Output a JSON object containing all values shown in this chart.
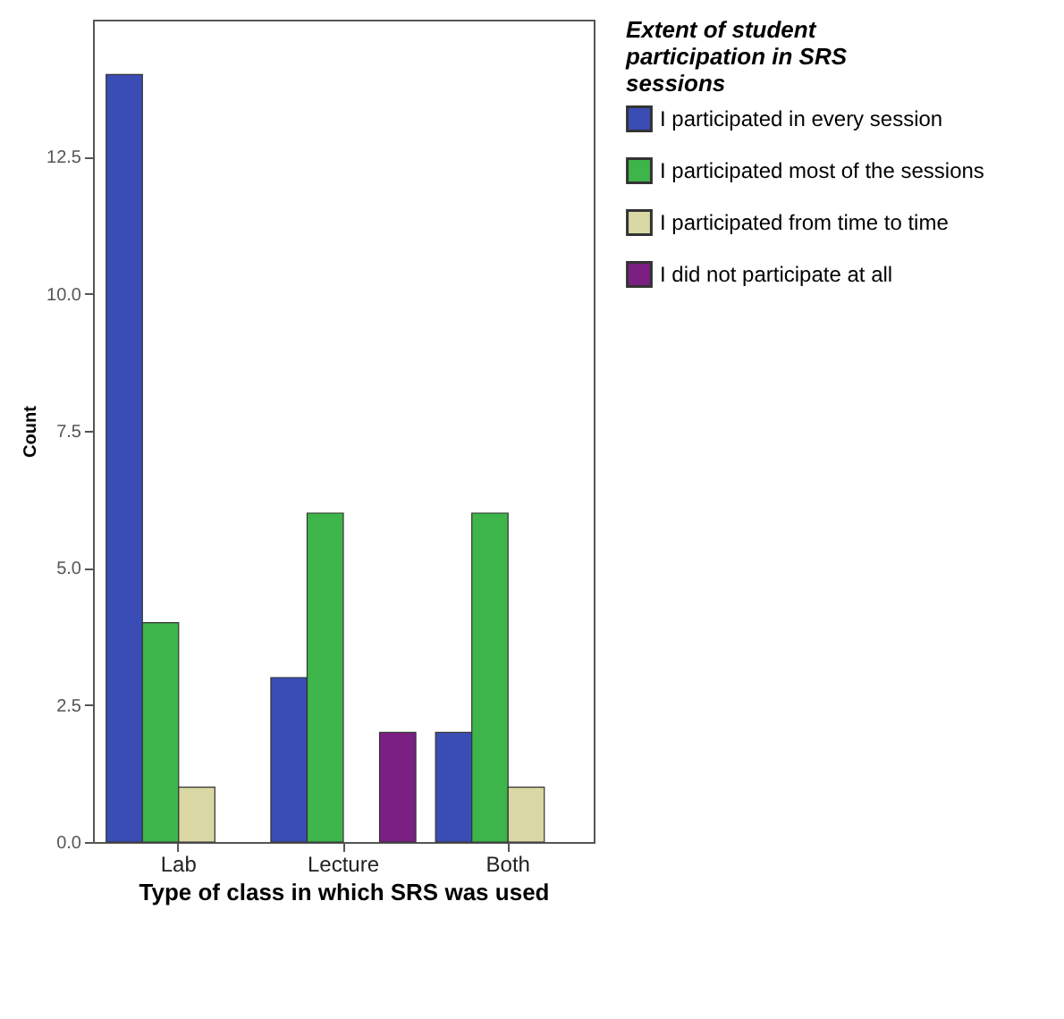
{
  "chart_data": {
    "type": "bar",
    "xlabel": "Type of class in which SRS was used",
    "ylabel": "Count",
    "legend_title": "Extent of student participation in SRS sessions",
    "categories": [
      "Lab",
      "Lecture",
      "Both"
    ],
    "series": [
      {
        "name": "I participated in every session",
        "color": "#3a4db5",
        "values": [
          14,
          3,
          2
        ]
      },
      {
        "name": "I participated most of the sessions",
        "color": "#3db54a",
        "values": [
          4,
          6,
          6
        ]
      },
      {
        "name": "I participated from time to time",
        "color": "#d9d7a3",
        "values": [
          1,
          null,
          1
        ]
      },
      {
        "name": "I did not participate at all",
        "color": "#7b1f83",
        "values": [
          null,
          2,
          null
        ]
      }
    ],
    "ylim": [
      0,
      15
    ],
    "yticks": [
      {
        "value": 0,
        "label": "0.0"
      },
      {
        "value": 2.5,
        "label": "2.5"
      },
      {
        "value": 5,
        "label": "5.0"
      },
      {
        "value": 7.5,
        "label": "7.5"
      },
      {
        "value": 10,
        "label": "10.0"
      },
      {
        "value": 12.5,
        "label": "12.5"
      }
    ],
    "grid": false,
    "legend": "right"
  }
}
